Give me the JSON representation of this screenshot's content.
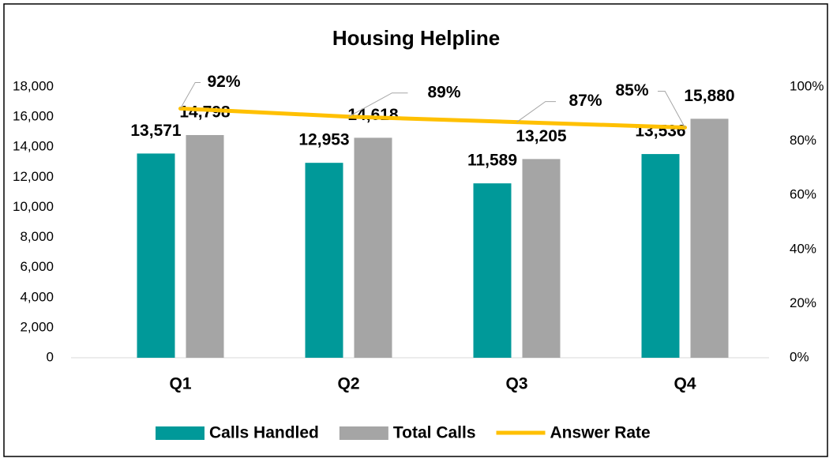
{
  "chart_data": {
    "type": "bar",
    "title": "Housing Helpline",
    "categories": [
      "Q1",
      "Q2",
      "Q3",
      "Q4"
    ],
    "series": [
      {
        "name": "Calls Handled",
        "type": "bar",
        "color": "#009999",
        "values": [
          13571,
          12953,
          11589,
          13536
        ],
        "value_labels": [
          "13,571",
          "12,953",
          "11,589",
          "13,536"
        ]
      },
      {
        "name": "Total Calls",
        "type": "bar",
        "color": "#A5A5A5",
        "values": [
          14798,
          14618,
          13205,
          15880
        ],
        "value_labels": [
          "14,798",
          "14,618",
          "13,205",
          "15,880"
        ]
      },
      {
        "name": "Answer Rate",
        "type": "line",
        "axis": "y2",
        "color": "#FFC000",
        "values": [
          92,
          89,
          87,
          85
        ],
        "value_labels": [
          "92%",
          "89%",
          "87%",
          "85%"
        ]
      }
    ],
    "ylim": [
      0,
      18000
    ],
    "yticks": [
      0,
      {
        "value": 2000,
        "label": "2,000"
      },
      {
        "value": 4000,
        "label": "4,000"
      },
      {
        "value": 6000,
        "label": "6,000"
      },
      {
        "value": 8000,
        "label": "8,000"
      },
      {
        "value": 10000,
        "label": "10,000"
      },
      {
        "value": 12000,
        "label": "12,000"
      },
      {
        "value": 14000,
        "label": "14,000"
      },
      {
        "value": 16000,
        "label": "16,000"
      },
      {
        "value": 18000,
        "label": "18,000"
      }
    ],
    "y2lim": [
      0,
      100
    ],
    "y2ticks": [
      {
        "value": 0,
        "label": "0%"
      },
      {
        "value": 20,
        "label": "20%"
      },
      {
        "value": 40,
        "label": "40%"
      },
      {
        "value": 60,
        "label": "60%"
      },
      {
        "value": 80,
        "label": "80%"
      },
      {
        "value": 100,
        "label": "100%"
      }
    ],
    "legend": "bottom"
  }
}
